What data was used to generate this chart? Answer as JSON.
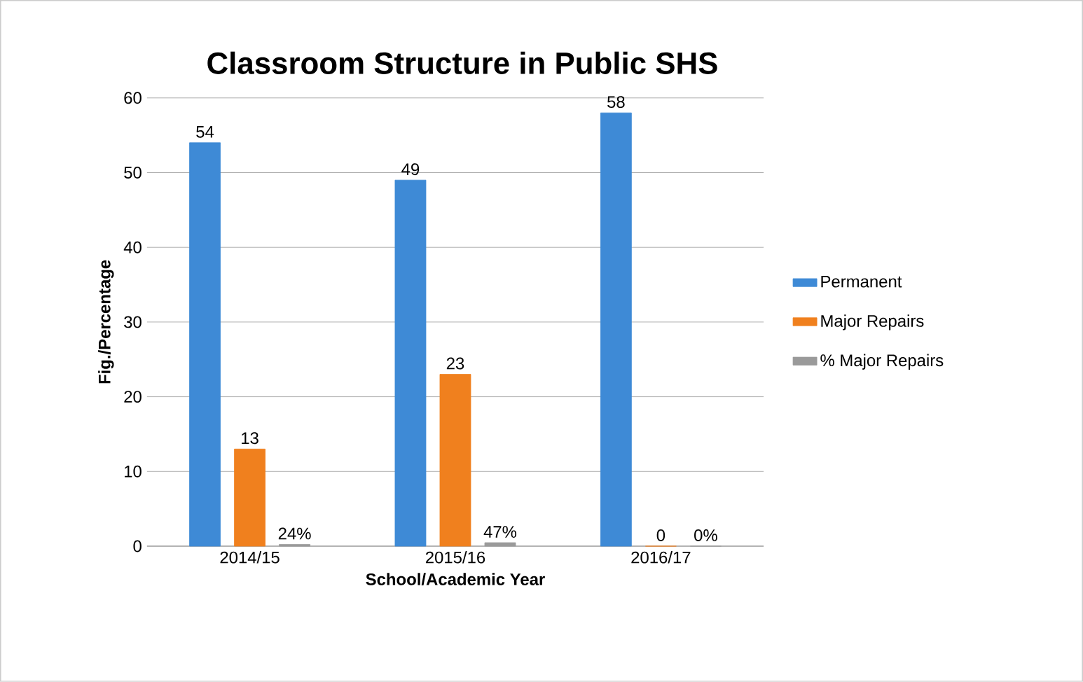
{
  "chart_data": {
    "type": "bar",
    "title": "Classroom Structure in Public SHS",
    "xlabel": "School/Academic Year",
    "ylabel": "Fig./Percentage",
    "categories": [
      "2014/15",
      "2015/16",
      "2016/17"
    ],
    "series": [
      {
        "name": "Permanent",
        "color": "#3e8ad6",
        "values": [
          54,
          49,
          58
        ],
        "value_labels": [
          "54",
          "49",
          "58"
        ]
      },
      {
        "name": "Major Repairs",
        "color": "#f0801e",
        "values": [
          13,
          23,
          0
        ],
        "value_labels": [
          "13",
          "23",
          "0"
        ]
      },
      {
        "name": "% Major Repairs",
        "color": "#9a9a9a",
        "values": [
          0.24,
          0.47,
          0
        ],
        "value_labels": [
          "24%",
          "47%",
          "0%"
        ]
      }
    ],
    "ylim": [
      0,
      60
    ],
    "yticks": [
      0,
      10,
      20,
      30,
      40,
      50,
      60
    ],
    "grid": "y",
    "legend": "right"
  }
}
